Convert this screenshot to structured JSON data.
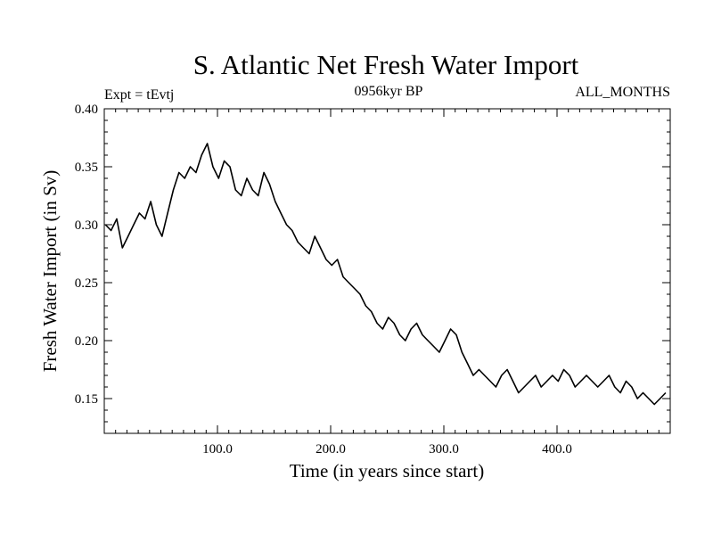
{
  "chart_data": {
    "type": "line",
    "title": "S. Atlantic Net Fresh Water Import",
    "subtitle": "0956kyr BP",
    "experiment": "Expt = tEvtj",
    "period": "ALL_MONTHS",
    "xlabel": "Time (in years since start)",
    "ylabel": "Fresh Water Import (in Sv)",
    "xlim": [
      0,
      500
    ],
    "ylim": [
      0.12,
      0.4
    ],
    "x_ticks": [
      100,
      200,
      300,
      400
    ],
    "x_tick_labels": [
      "100.0",
      "200.0",
      "300.0",
      "400.0"
    ],
    "y_ticks": [
      0.15,
      0.2,
      0.25,
      0.3,
      0.35,
      0.4
    ],
    "y_tick_labels": [
      "0.15",
      "0.20",
      "0.25",
      "0.30",
      "0.35",
      "0.40"
    ],
    "grid": false,
    "series": [
      {
        "name": "S. Atlantic Net Fresh Water Import",
        "x_start": 1,
        "x_step": 5,
        "values": [
          0.3,
          0.295,
          0.305,
          0.28,
          0.29,
          0.3,
          0.31,
          0.305,
          0.32,
          0.3,
          0.29,
          0.31,
          0.33,
          0.345,
          0.34,
          0.35,
          0.345,
          0.36,
          0.37,
          0.35,
          0.34,
          0.355,
          0.35,
          0.33,
          0.325,
          0.34,
          0.33,
          0.325,
          0.345,
          0.335,
          0.32,
          0.31,
          0.3,
          0.295,
          0.285,
          0.28,
          0.275,
          0.29,
          0.28,
          0.27,
          0.265,
          0.27,
          0.255,
          0.25,
          0.245,
          0.24,
          0.23,
          0.225,
          0.215,
          0.21,
          0.22,
          0.215,
          0.205,
          0.2,
          0.21,
          0.215,
          0.205,
          0.2,
          0.195,
          0.19,
          0.2,
          0.21,
          0.205,
          0.19,
          0.18,
          0.17,
          0.175,
          0.17,
          0.165,
          0.16,
          0.17,
          0.175,
          0.165,
          0.155,
          0.16,
          0.165,
          0.17,
          0.16,
          0.165,
          0.17,
          0.165,
          0.175,
          0.17,
          0.16,
          0.165,
          0.17,
          0.165,
          0.16,
          0.165,
          0.17,
          0.16,
          0.155,
          0.165,
          0.16,
          0.15,
          0.155,
          0.15,
          0.145,
          0.15,
          0.155
        ]
      }
    ]
  }
}
